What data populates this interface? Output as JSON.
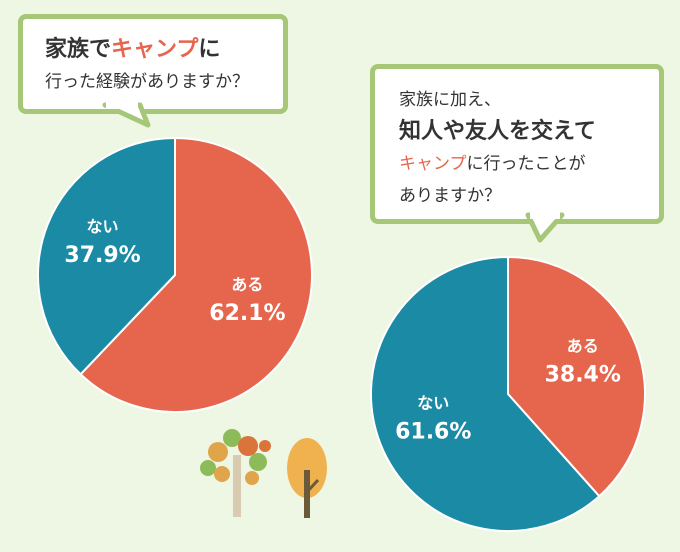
{
  "question1": {
    "line1_pre": "家族で",
    "line1_highlight": "キャンプ",
    "line1_post": "に",
    "line2": "行った経験がありますか？"
  },
  "question2": {
    "line1": "家族に加え、",
    "line2": "知人や友人を交えて",
    "line3_highlight": "キャンプ",
    "line3_post": "に行ったことが",
    "line4": "ありますか？"
  },
  "colors": {
    "aru": "#e5664c",
    "nai": "#1b8aa4",
    "bubble_border": "#a6c777",
    "background": "#eef6e4"
  },
  "chart_data": [
    {
      "type": "pie",
      "slices": [
        {
          "label": "ある",
          "value": 62.1,
          "display": "62.1%"
        },
        {
          "label": "ない",
          "value": 37.9,
          "display": "37.9%"
        }
      ]
    },
    {
      "type": "pie",
      "slices": [
        {
          "label": "ある",
          "value": 38.4,
          "display": "38.4%"
        },
        {
          "label": "ない",
          "value": 61.6,
          "display": "61.6%"
        }
      ]
    }
  ]
}
